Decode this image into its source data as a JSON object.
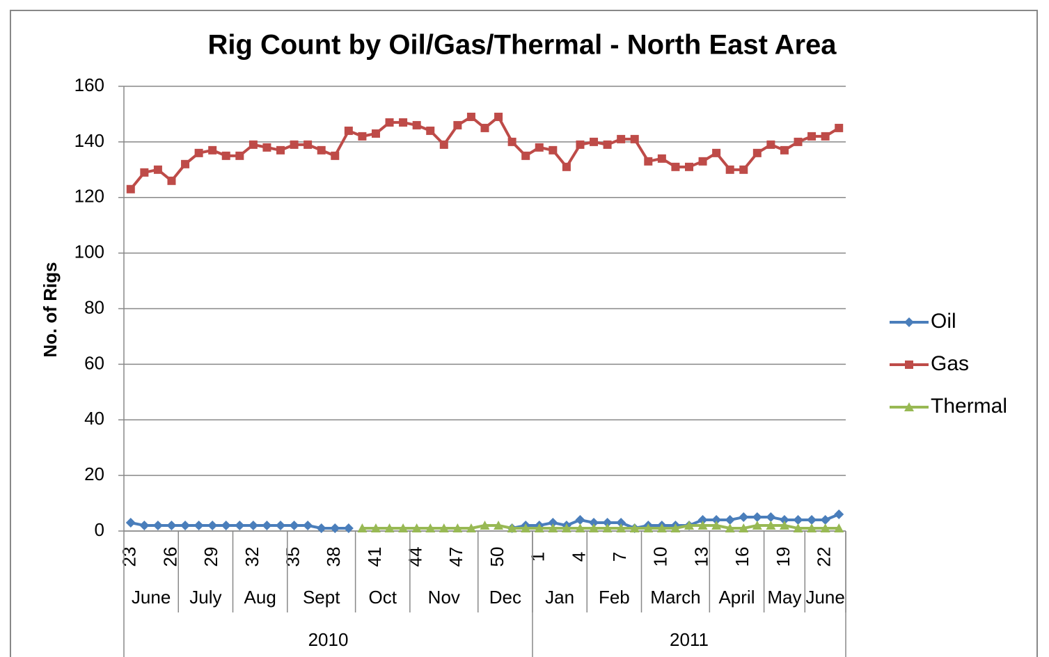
{
  "chart_data": {
    "type": "line",
    "title": "Rig Count by Oil/Gas/Thermal - North East Area",
    "y_label": "No. of Rigs",
    "categories": [
      "23",
      null,
      null,
      "26",
      null,
      null,
      "29",
      null,
      null,
      "32",
      null,
      null,
      "35",
      null,
      null,
      "38",
      null,
      null,
      "41",
      null,
      null,
      "44",
      null,
      null,
      "47",
      null,
      null,
      "50",
      null,
      null,
      "1",
      null,
      null,
      "4",
      null,
      null,
      "7",
      null,
      null,
      "10",
      null,
      null,
      "13",
      null,
      null,
      "16",
      null,
      null,
      "19",
      null,
      null,
      "22",
      null
    ],
    "month_groups": [
      {
        "label": "June",
        "count": 4
      },
      {
        "label": "July",
        "count": 4
      },
      {
        "label": "Aug",
        "count": 4
      },
      {
        "label": "Sept",
        "count": 5
      },
      {
        "label": "Oct",
        "count": 4
      },
      {
        "label": "Nov",
        "count": 5
      },
      {
        "label": "Dec",
        "count": 4
      },
      {
        "label": "Jan",
        "count": 4
      },
      {
        "label": "Feb",
        "count": 4
      },
      {
        "label": "March",
        "count": 5
      },
      {
        "label": "April",
        "count": 4
      },
      {
        "label": "May",
        "count": 3
      },
      {
        "label": "June",
        "count": 3
      }
    ],
    "year_groups": [
      {
        "label": "2010",
        "count": 30
      },
      {
        "label": "2011",
        "count": 23
      }
    ],
    "series": [
      {
        "name": "Oil",
        "color": "#4a7ebb",
        "marker": "diamond",
        "values": [
          3,
          2,
          2,
          2,
          2,
          2,
          2,
          2,
          2,
          2,
          2,
          2,
          2,
          2,
          1,
          1,
          1,
          null,
          null,
          null,
          null,
          null,
          null,
          null,
          null,
          null,
          null,
          null,
          1,
          2,
          2,
          3,
          2,
          4,
          3,
          3,
          3,
          1,
          2,
          2,
          2,
          2,
          4,
          4,
          4,
          5,
          5,
          5,
          4,
          4,
          4,
          4,
          6
        ]
      },
      {
        "name": "Gas",
        "color": "#be4b48",
        "marker": "square",
        "values": [
          123,
          129,
          130,
          126,
          132,
          136,
          137,
          135,
          135,
          139,
          138,
          137,
          139,
          139,
          137,
          135,
          144,
          142,
          143,
          147,
          147,
          146,
          144,
          139,
          146,
          149,
          145,
          149,
          140,
          135,
          138,
          137,
          131,
          139,
          140,
          139,
          141,
          141,
          133,
          134,
          131,
          131,
          133,
          136,
          130,
          130,
          136,
          139,
          137,
          140,
          142,
          142,
          145
        ]
      },
      {
        "name": "Thermal",
        "color": "#98b954",
        "marker": "triangle",
        "values": [
          null,
          null,
          null,
          null,
          null,
          null,
          null,
          null,
          null,
          null,
          null,
          null,
          null,
          null,
          null,
          null,
          null,
          1,
          1,
          1,
          1,
          1,
          1,
          1,
          1,
          1,
          2,
          2,
          1,
          1,
          1,
          1,
          1,
          1,
          1,
          1,
          1,
          1,
          1,
          1,
          1,
          2,
          2,
          2,
          1,
          1,
          2,
          2,
          2,
          1,
          1,
          1,
          1
        ]
      }
    ],
    "ylim": [
      0,
      160
    ],
    "yticks": [
      0,
      20,
      40,
      60,
      80,
      100,
      120,
      140,
      160
    ],
    "grid": true,
    "legend": "right"
  }
}
